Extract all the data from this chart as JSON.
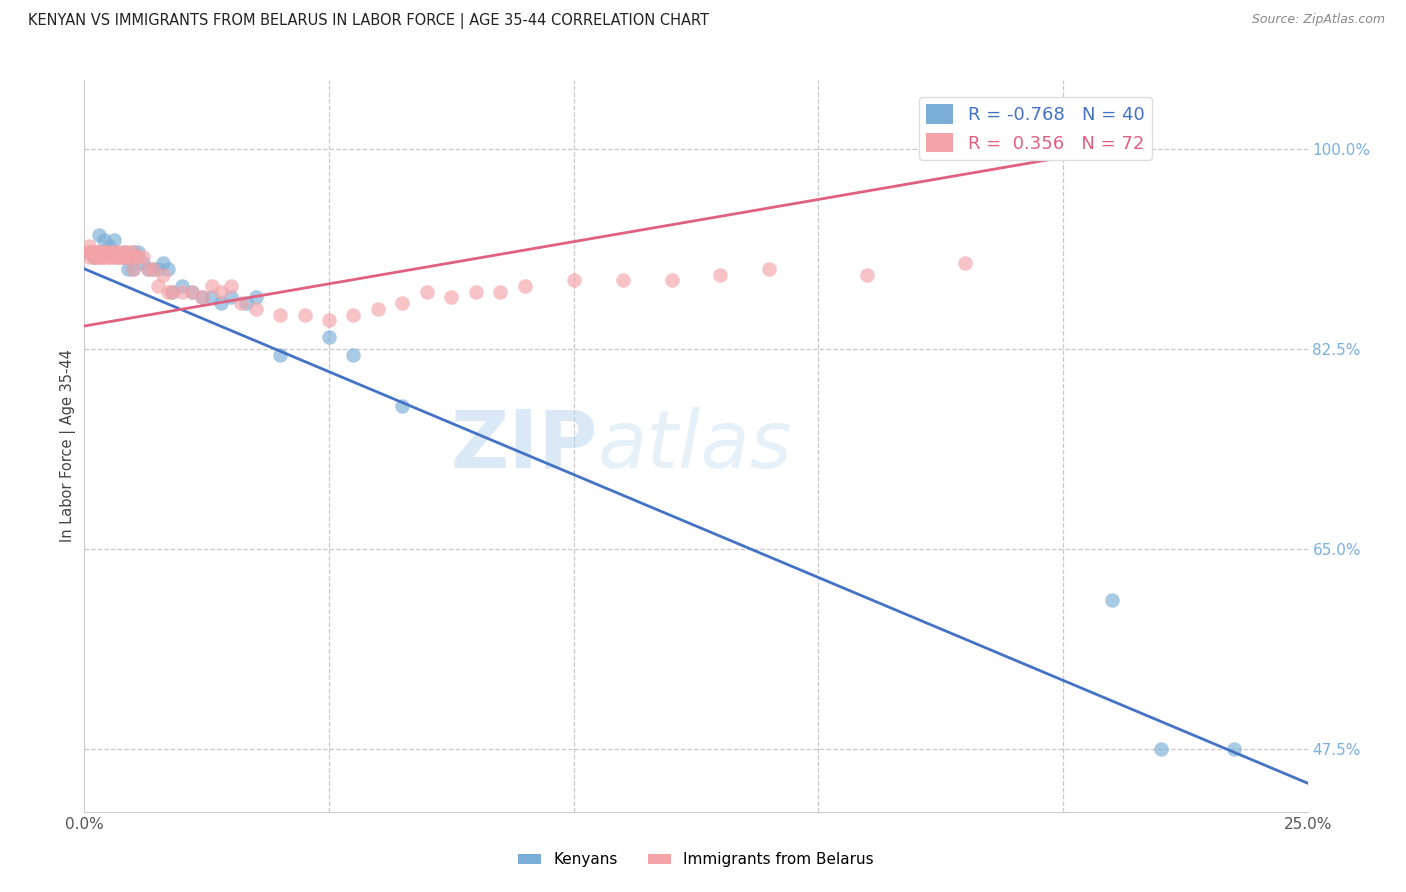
{
  "title": "KENYAN VS IMMIGRANTS FROM BELARUS IN LABOR FORCE | AGE 35-44 CORRELATION CHART",
  "source": "Source: ZipAtlas.com",
  "ylabel": "In Labor Force | Age 35-44",
  "xlim": [
    0.0,
    0.25
  ],
  "ylim": [
    0.42,
    1.06
  ],
  "watermark_text": "ZIPatlas",
  "legend_blue_r": "-0.768",
  "legend_blue_n": "40",
  "legend_pink_r": "0.356",
  "legend_pink_n": "72",
  "blue_color": "#7aaed6",
  "pink_color": "#f4a3a8",
  "blue_line_color": "#4472c4",
  "pink_line_color": "#e06080",
  "background_color": "#FFFFFF",
  "grid_color": "#c8c8c8",
  "title_color": "#222222",
  "right_tick_color": "#7ab0e0",
  "ytick_positions": [
    0.475,
    0.65,
    0.825,
    1.0
  ],
  "ytick_labels": [
    "47.5%",
    "65.0%",
    "82.5%",
    "100.0%"
  ],
  "xtick_positions": [
    0.0,
    0.05,
    0.1,
    0.15,
    0.2,
    0.25
  ],
  "xtick_labels": [
    "0.0%",
    "",
    "",
    "",
    "",
    "25.0%"
  ],
  "blue_line_x": [
    0.0,
    0.25
  ],
  "blue_line_y": [
    0.895,
    0.445
  ],
  "pink_line_x": [
    0.0,
    0.21
  ],
  "pink_line_y": [
    0.845,
    1.0
  ],
  "blue_scatter_x": [
    0.001,
    0.002,
    0.003,
    0.003,
    0.004,
    0.004,
    0.005,
    0.005,
    0.006,
    0.006,
    0.007,
    0.008,
    0.008,
    0.009,
    0.009,
    0.01,
    0.01,
    0.011,
    0.012,
    0.013,
    0.014,
    0.015,
    0.016,
    0.017,
    0.018,
    0.02,
    0.022,
    0.024,
    0.026,
    0.028,
    0.03,
    0.033,
    0.035,
    0.04,
    0.05,
    0.055,
    0.065,
    0.21,
    0.22,
    0.235
  ],
  "blue_scatter_y": [
    0.91,
    0.905,
    0.925,
    0.91,
    0.92,
    0.91,
    0.915,
    0.91,
    0.91,
    0.92,
    0.905,
    0.91,
    0.905,
    0.905,
    0.895,
    0.91,
    0.895,
    0.91,
    0.9,
    0.895,
    0.895,
    0.895,
    0.9,
    0.895,
    0.875,
    0.88,
    0.875,
    0.87,
    0.87,
    0.865,
    0.87,
    0.865,
    0.87,
    0.82,
    0.835,
    0.82,
    0.775,
    0.605,
    0.475,
    0.475
  ],
  "pink_scatter_x": [
    0.001,
    0.001,
    0.001,
    0.001,
    0.002,
    0.002,
    0.002,
    0.002,
    0.002,
    0.003,
    0.003,
    0.003,
    0.003,
    0.003,
    0.003,
    0.004,
    0.004,
    0.004,
    0.004,
    0.005,
    0.005,
    0.005,
    0.006,
    0.006,
    0.006,
    0.006,
    0.007,
    0.007,
    0.007,
    0.008,
    0.008,
    0.008,
    0.009,
    0.009,
    0.01,
    0.01,
    0.01,
    0.011,
    0.012,
    0.013,
    0.014,
    0.015,
    0.016,
    0.017,
    0.018,
    0.02,
    0.022,
    0.024,
    0.026,
    0.028,
    0.03,
    0.032,
    0.035,
    0.04,
    0.045,
    0.05,
    0.055,
    0.06,
    0.065,
    0.07,
    0.075,
    0.08,
    0.085,
    0.09,
    0.1,
    0.11,
    0.12,
    0.13,
    0.14,
    0.16,
    0.18,
    0.21
  ],
  "pink_scatter_y": [
    0.905,
    0.91,
    0.91,
    0.915,
    0.905,
    0.91,
    0.905,
    0.91,
    0.91,
    0.905,
    0.91,
    0.91,
    0.905,
    0.91,
    0.905,
    0.905,
    0.91,
    0.905,
    0.91,
    0.905,
    0.91,
    0.905,
    0.91,
    0.905,
    0.91,
    0.905,
    0.905,
    0.91,
    0.905,
    0.905,
    0.91,
    0.905,
    0.905,
    0.91,
    0.91,
    0.905,
    0.895,
    0.905,
    0.905,
    0.895,
    0.895,
    0.88,
    0.89,
    0.875,
    0.875,
    0.875,
    0.875,
    0.87,
    0.88,
    0.875,
    0.88,
    0.865,
    0.86,
    0.855,
    0.855,
    0.85,
    0.855,
    0.86,
    0.865,
    0.875,
    0.87,
    0.875,
    0.875,
    0.88,
    0.885,
    0.885,
    0.885,
    0.89,
    0.895,
    0.89,
    0.9,
    1.0
  ]
}
